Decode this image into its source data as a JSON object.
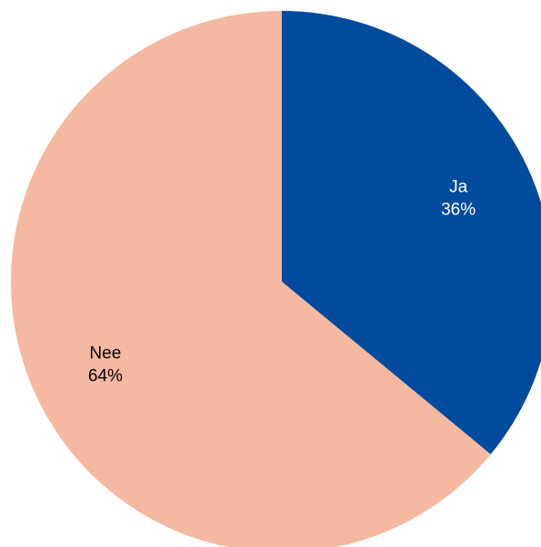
{
  "chart_data": {
    "type": "pie",
    "categories": [
      "Ja",
      "Nee"
    ],
    "values": [
      36,
      64
    ],
    "labels": [
      {
        "name": "Ja",
        "percent": "36%"
      },
      {
        "name": "Nee",
        "percent": "64%"
      }
    ],
    "colors": [
      "#004b9d",
      "#f5b8a0"
    ],
    "label_colors": [
      "#ffffff",
      "#000000"
    ],
    "start_angle_deg": 0,
    "direction": "clockwise",
    "title": "",
    "legend": "none"
  }
}
